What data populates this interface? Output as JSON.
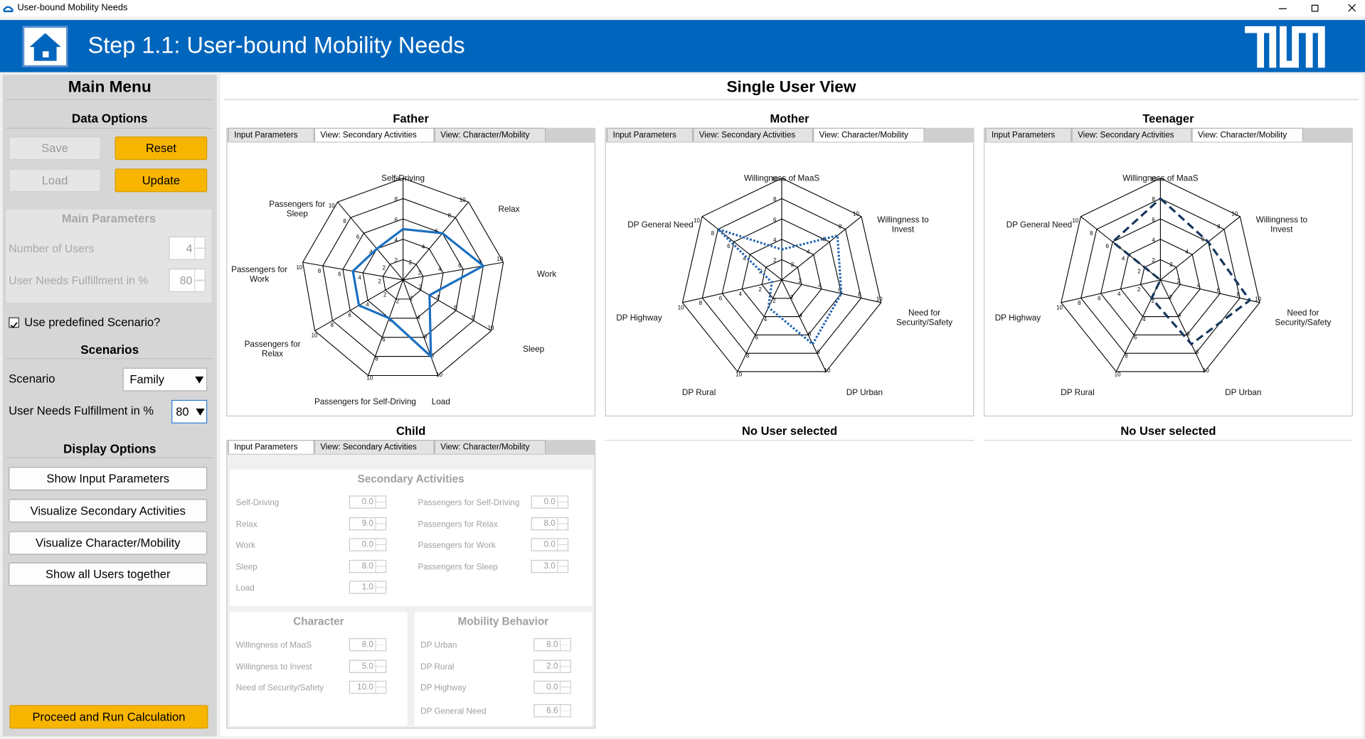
{
  "window": {
    "title": "User-bound Mobility Needs"
  },
  "header": {
    "title": "Step 1.1: User-bound Mobility Needs"
  },
  "menu": {
    "title": "Main Menu",
    "data_options": {
      "title": "Data Options",
      "buttons": [
        "Save",
        "Reset",
        "Load",
        "Update"
      ]
    },
    "main_parameters": {
      "title": "Main Parameters",
      "fields": [
        {
          "label": "Number of Users",
          "value": "4"
        },
        {
          "label": "User Needs Fulfillment in %",
          "value": "80"
        }
      ]
    },
    "use_predefined": "Use predefined Scenario?",
    "scenarios": {
      "title": "Scenarios",
      "fields": [
        {
          "label": "Scenario",
          "value": "Family"
        },
        {
          "label": "User Needs Fulfillment in %",
          "value": "80"
        }
      ]
    },
    "display_options": {
      "title": "Display Options",
      "buttons": [
        "Show Input Parameters",
        "Visualize Secondary Activities",
        "Visualize Character/Mobility",
        "Show all Users together"
      ]
    },
    "proceed": "Proceed and Run Calculation"
  },
  "view": {
    "title": "Single User View",
    "tabs": [
      "Input Parameters",
      "View: Secondary Activities",
      "View: Character/Mobility"
    ],
    "users": [
      {
        "name": "Father",
        "active_tab": 1,
        "chart": {
          "type": "radar",
          "axes": [
            "Self-Driving",
            "Relax",
            "Work",
            "Sleep",
            "Load",
            "Passengers for Self-Driving",
            "Passengers for Relax",
            "Passengers for Work",
            "Passengers for Sleep"
          ],
          "values": [
            5,
            6,
            8,
            3,
            8,
            4,
            5,
            5,
            4
          ],
          "color": "#1a6fc0",
          "line_style": "solid",
          "rlim": [
            0,
            10
          ],
          "rticks": [
            2,
            4,
            6,
            8,
            10
          ]
        }
      },
      {
        "name": "Mother",
        "active_tab": 2,
        "chart": {
          "type": "radar",
          "axes": [
            "Willingness of MaaS",
            "Willingness to Invest",
            "Need for Security/Safety",
            "DP Urban",
            "DP Rural",
            "DP Highway",
            "DP General Need"
          ],
          "values": [
            3,
            7,
            6,
            7,
            3,
            1,
            8
          ],
          "color": "#1f63b0",
          "line_style": "dotted",
          "rlim": [
            0,
            10
          ],
          "rticks": [
            2,
            4,
            6,
            8,
            10
          ]
        }
      },
      {
        "name": "Teenager",
        "active_tab": 2,
        "chart": {
          "type": "radar",
          "axes": [
            "Willingness of MaaS",
            "Willingness to Invest",
            "Need for Security/Safety",
            "DP Urban",
            "DP Rural",
            "DP Highway",
            "DP General Need"
          ],
          "values": [
            8,
            6,
            9,
            7,
            2,
            0,
            6
          ],
          "color": "#17375e",
          "line_style": "dashed",
          "rlim": [
            0,
            10
          ],
          "rticks": [
            2,
            4,
            6,
            8,
            10
          ]
        }
      },
      {
        "name": "Child",
        "active_tab": 0,
        "form": {
          "secondary": {
            "title": "Secondary Activities",
            "fields": [
              {
                "label": "Self-Driving",
                "value": "0.0"
              },
              {
                "label": "Relax",
                "value": "9.0"
              },
              {
                "label": "Work",
                "value": "0.0"
              },
              {
                "label": "Sleep",
                "value": "8.0"
              },
              {
                "label": "Load",
                "value": "1.0"
              },
              {
                "label": "Passengers for Self-Driving",
                "value": "0.0"
              },
              {
                "label": "Passengers for Relax",
                "value": "8.0"
              },
              {
                "label": "Passengers for Work",
                "value": "0.0"
              },
              {
                "label": "Passengers for Sleep",
                "value": "3.0"
              }
            ]
          },
          "character": {
            "title": "Character",
            "fields": [
              {
                "label": "Willingness of MaaS",
                "value": "8.0"
              },
              {
                "label": "Willingness to Invest",
                "value": "5.0"
              },
              {
                "label": "Need of Security/Safety",
                "value": "10.0"
              }
            ]
          },
          "mobility": {
            "title": "Mobility Behavior",
            "fields": [
              {
                "label": "DP Urban",
                "value": "8.0"
              },
              {
                "label": "DP Rural",
                "value": "2.0"
              },
              {
                "label": "DP Highway",
                "value": "0.0"
              },
              {
                "label": "DP General Need",
                "value": "6.6"
              }
            ]
          }
        }
      }
    ],
    "empty_slots": [
      "No User selected",
      "No User selected"
    ]
  }
}
